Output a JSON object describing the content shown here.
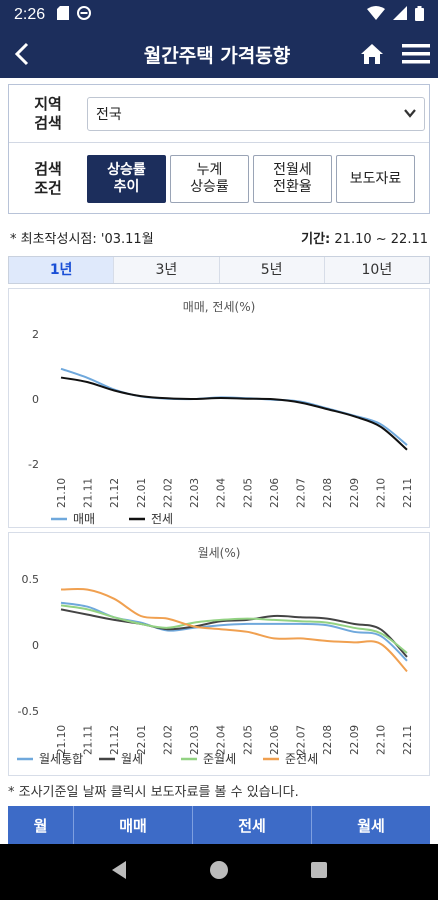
{
  "status_bar": {
    "time": "2:26"
  },
  "app_bar": {
    "title": "월간주택 가격동향"
  },
  "filter": {
    "region_label": "지역\n검색",
    "region_value": "전국",
    "condition_label": "검색\n조건",
    "buttons": [
      {
        "label": "상승률\n추이",
        "active": true
      },
      {
        "label": "누계\n상승률",
        "active": false
      },
      {
        "label": "전월세\n전환율",
        "active": false
      },
      {
        "label": "보도자료",
        "active": false
      }
    ]
  },
  "info": {
    "first_written": "* 최초작성시점: '03.11월",
    "period_label": "기간:",
    "period_value": " 21.10 ~ 22.11"
  },
  "tabs": [
    {
      "label": "1년",
      "active": true
    },
    {
      "label": "3년",
      "active": false
    },
    {
      "label": "5년",
      "active": false
    },
    {
      "label": "10년",
      "active": false
    }
  ],
  "chart_data": [
    {
      "type": "line",
      "title": "매매, 전세(%)",
      "x": [
        "21.10",
        "21.11",
        "21.12",
        "22.01",
        "22.02",
        "22.03",
        "22.04",
        "22.05",
        "22.06",
        "22.07",
        "22.08",
        "22.09",
        "22.10",
        "22.11"
      ],
      "ylim": [
        -2,
        2
      ],
      "yticks": [
        2,
        0,
        -2
      ],
      "grid": false,
      "legend": "bottom-left",
      "series": [
        {
          "name": "매매",
          "color": "#6fa8dc",
          "values": [
            0.93,
            0.65,
            0.29,
            0.08,
            0.01,
            0.0,
            0.05,
            0.02,
            -0.02,
            -0.08,
            -0.29,
            -0.51,
            -0.77,
            -1.42
          ]
        },
        {
          "name": "전세",
          "color": "#111111",
          "values": [
            0.66,
            0.52,
            0.26,
            0.09,
            0.02,
            0.0,
            0.03,
            0.01,
            -0.01,
            -0.11,
            -0.31,
            -0.53,
            -0.85,
            -1.56
          ]
        }
      ]
    },
    {
      "type": "line",
      "title": "월세(%)",
      "x": [
        "21.10",
        "21.11",
        "21.12",
        "22.01",
        "22.02",
        "22.03",
        "22.04",
        "22.05",
        "22.06",
        "22.07",
        "22.08",
        "22.09",
        "22.10",
        "22.11"
      ],
      "ylim": [
        -0.5,
        0.5
      ],
      "yticks": [
        0.5,
        0,
        -0.5
      ],
      "grid": false,
      "legend": "bottom",
      "series": [
        {
          "name": "월세통합",
          "color": "#6fa8dc",
          "values": [
            0.32,
            0.29,
            0.21,
            0.17,
            0.11,
            0.13,
            0.15,
            0.16,
            0.16,
            0.16,
            0.15,
            0.1,
            0.07,
            -0.12
          ]
        },
        {
          "name": "월세",
          "color": "#444444",
          "values": [
            0.27,
            0.23,
            0.19,
            0.16,
            0.12,
            0.14,
            0.18,
            0.19,
            0.22,
            0.21,
            0.2,
            0.16,
            0.12,
            -0.09
          ]
        },
        {
          "name": "준월세",
          "color": "#93d283",
          "values": [
            0.3,
            0.27,
            0.21,
            0.16,
            0.13,
            0.17,
            0.19,
            0.2,
            0.19,
            0.18,
            0.17,
            0.13,
            0.09,
            -0.06
          ]
        },
        {
          "name": "준전세",
          "color": "#f0a050",
          "values": [
            0.42,
            0.42,
            0.35,
            0.22,
            0.2,
            0.14,
            0.12,
            0.1,
            0.05,
            0.05,
            0.03,
            0.02,
            0.01,
            -0.2
          ]
        }
      ]
    }
  ],
  "note": "* 조사기준일 날짜 클릭시 보도자료를 볼 수 있습니다.",
  "table": {
    "headers": [
      "월",
      "매매",
      "전세",
      "월세"
    ]
  }
}
